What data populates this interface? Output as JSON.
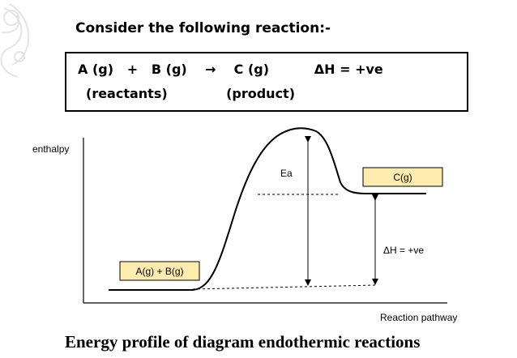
{
  "heading": "Consider the following reaction:-",
  "reaction": {
    "equation": "A (g)   +   B (g)    →    C (g)          ΔH = +ve",
    "roles": "(reactants)             (product)"
  },
  "diagram": {
    "y_axis_label": "enthalpy",
    "x_axis_label": "Reaction pathway",
    "reactant_label": "A(g) + B(g)",
    "product_label": "C(g)",
    "activation_label": "Ea",
    "delta_h_label": "ΔH = +ve",
    "colors": {
      "level_box_fill": "#fdecae",
      "line": "#000000"
    }
  },
  "caption": "Energy profile of diagram endothermic reactions"
}
